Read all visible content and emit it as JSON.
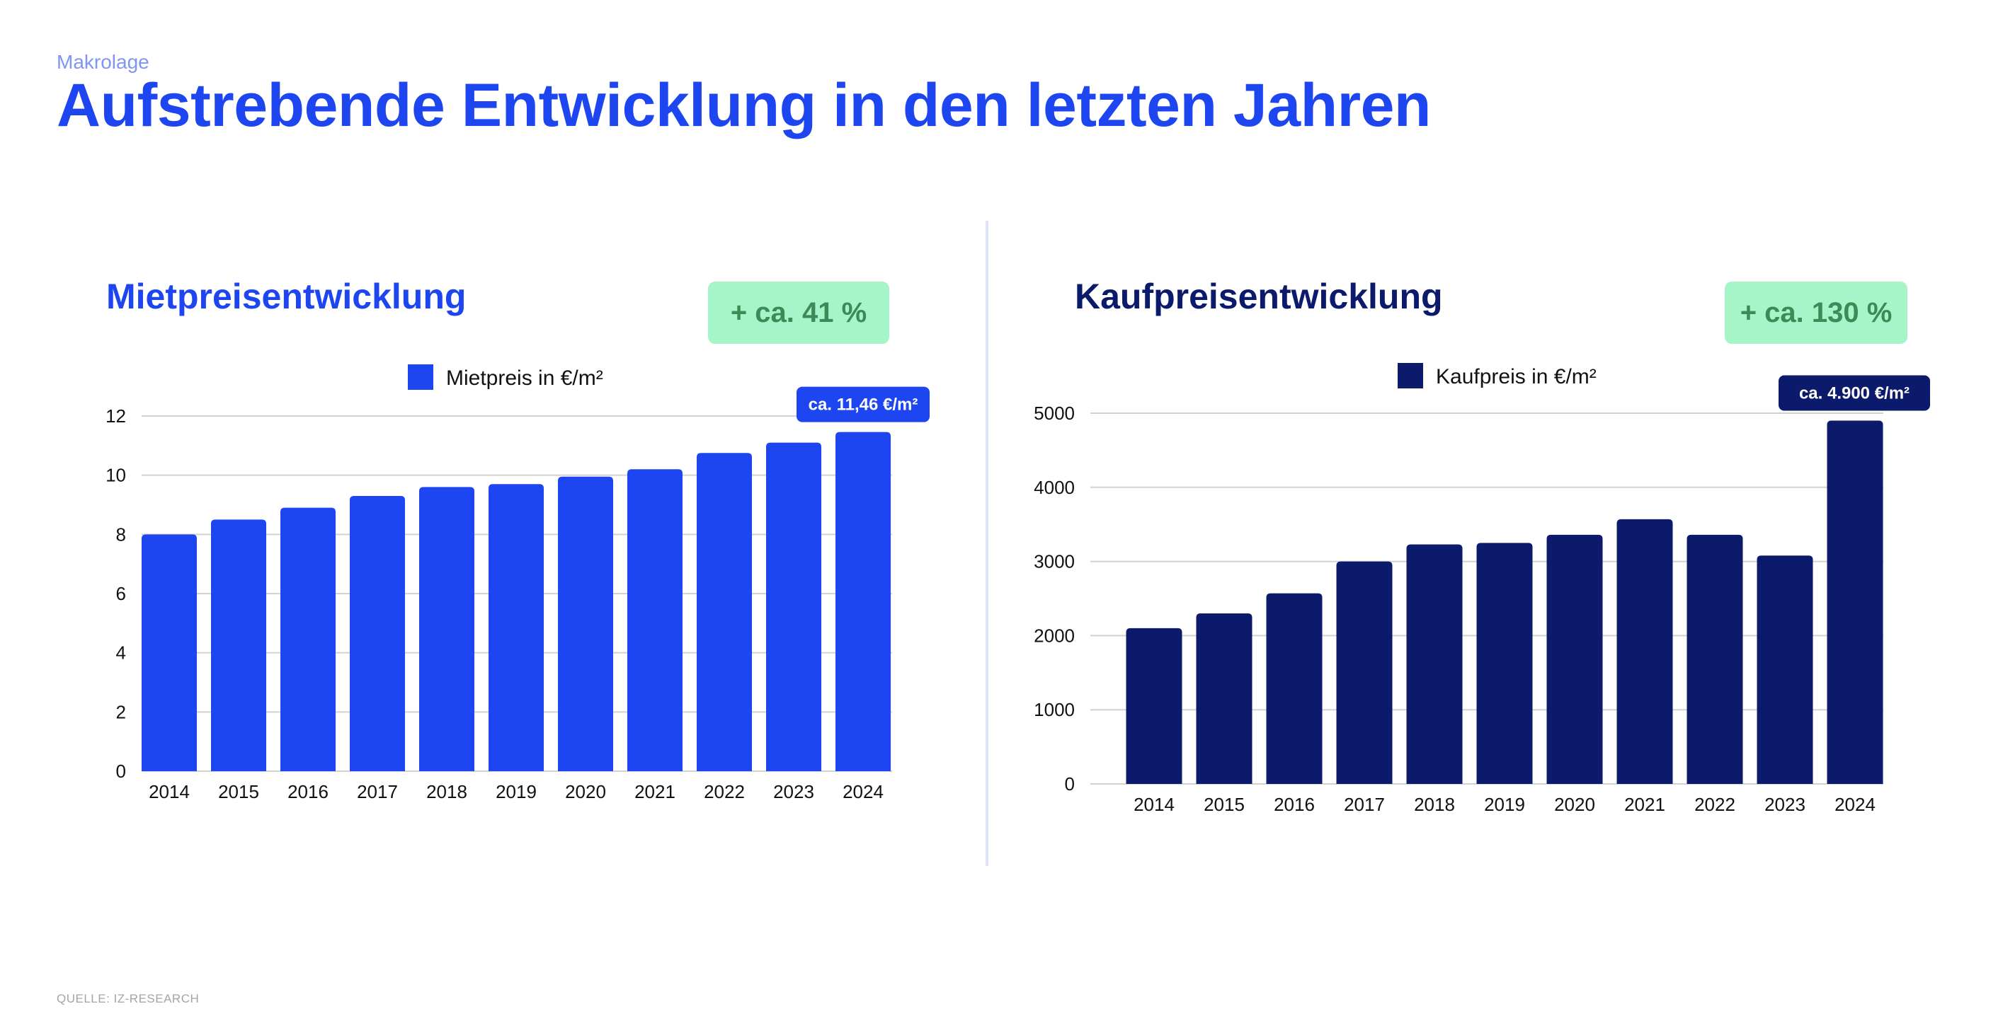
{
  "header": {
    "kicker": "Makrolage",
    "title": "Aufstrebende Entwicklung in den letzten Jahren"
  },
  "left": {
    "title": "Mietpreisentwicklung",
    "badge": "+ ca. 41 %",
    "title_color": "#1e46f0"
  },
  "right": {
    "title": "Kaufpreisentwicklung",
    "badge": "+ ca. 130 %",
    "title_color": "#0b1a6b"
  },
  "source": "QUELLE: IZ-RESEARCH",
  "chart_data": [
    {
      "type": "bar",
      "categories": [
        "2014",
        "2015",
        "2016",
        "2017",
        "2018",
        "2019",
        "2020",
        "2021",
        "2022",
        "2023",
        "2024"
      ],
      "series": [
        {
          "name": "Mietpreis in €/m²",
          "values": [
            8.0,
            8.5,
            8.9,
            9.3,
            9.6,
            9.7,
            9.95,
            10.2,
            10.75,
            11.1,
            11.46
          ],
          "color": "#1e46f0"
        }
      ],
      "ylim": [
        0,
        12
      ],
      "yticks": [
        "0",
        "2",
        "4",
        "6",
        "8",
        "10",
        "12"
      ],
      "grid": true,
      "legend_position": "top-center",
      "annotation": {
        "text": "ca. 11,46 €/m²",
        "category": "2024"
      }
    },
    {
      "type": "bar",
      "categories": [
        "2014",
        "2015",
        "2016",
        "2017",
        "2018",
        "2019",
        "2020",
        "2021",
        "2022",
        "2023",
        "2024"
      ],
      "series": [
        {
          "name": "Kaufpreis in €/m²",
          "values": [
            2100,
            2300,
            2570,
            3000,
            3230,
            3250,
            3360,
            3570,
            3360,
            3080,
            4900
          ],
          "color": "#0b1a6b"
        }
      ],
      "ylim": [
        0,
        5000
      ],
      "yticks": [
        "0",
        "1000",
        "2000",
        "3000",
        "4000",
        "5000"
      ],
      "grid": true,
      "legend_position": "top-center",
      "annotation": {
        "text": "ca. 4.900 €/m²",
        "category": "2024"
      }
    }
  ]
}
